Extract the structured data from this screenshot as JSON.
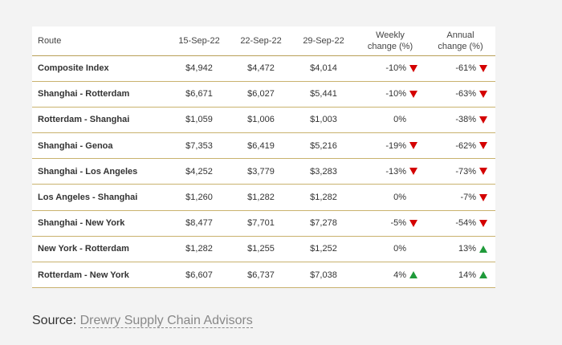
{
  "table": {
    "headers": {
      "route": "Route",
      "d1": "15-Sep-22",
      "d2": "22-Sep-22",
      "d3": "29-Sep-22",
      "weekly_line1": "Weekly",
      "weekly_line2": "change (%)",
      "annual_line1": "Annual",
      "annual_line2": "change (%)"
    },
    "rows": [
      {
        "route": "Composite Index",
        "d1": "$4,942",
        "d2": "$4,472",
        "d3": "$4,014",
        "weekly": "-10%",
        "weekly_dir": "down",
        "annual": "-61%",
        "annual_dir": "down"
      },
      {
        "route": "Shanghai - Rotterdam",
        "d1": "$6,671",
        "d2": "$6,027",
        "d3": "$5,441",
        "weekly": "-10%",
        "weekly_dir": "down",
        "annual": "-63%",
        "annual_dir": "down"
      },
      {
        "route": "Rotterdam - Shanghai",
        "d1": "$1,059",
        "d2": "$1,006",
        "d3": "$1,003",
        "weekly": "0%",
        "weekly_dir": "none",
        "annual": "-38%",
        "annual_dir": "down"
      },
      {
        "route": "Shanghai - Genoa",
        "d1": "$7,353",
        "d2": "$6,419",
        "d3": "$5,216",
        "weekly": "-19%",
        "weekly_dir": "down",
        "annual": "-62%",
        "annual_dir": "down"
      },
      {
        "route": "Shanghai - Los Angeles",
        "d1": "$4,252",
        "d2": "$3,779",
        "d3": "$3,283",
        "weekly": "-13%",
        "weekly_dir": "down",
        "annual": "-73%",
        "annual_dir": "down"
      },
      {
        "route": "Los Angeles - Shanghai",
        "d1": "$1,260",
        "d2": "$1,282",
        "d3": "$1,282",
        "weekly": "0%",
        "weekly_dir": "none",
        "annual": "-7%",
        "annual_dir": "down"
      },
      {
        "route": "Shanghai - New York",
        "d1": "$8,477",
        "d2": "$7,701",
        "d3": "$7,278",
        "weekly": "-5%",
        "weekly_dir": "down",
        "annual": "-54%",
        "annual_dir": "down"
      },
      {
        "route": "New York - Rotterdam",
        "d1": "$1,282",
        "d2": "$1,255",
        "d3": "$1,252",
        "weekly": "0%",
        "weekly_dir": "none",
        "annual": "13%",
        "annual_dir": "up"
      },
      {
        "route": "Rotterdam - New York",
        "d1": "$6,607",
        "d2": "$6,737",
        "d3": "$7,038",
        "weekly": "4%",
        "weekly_dir": "up",
        "annual": "14%",
        "annual_dir": "up"
      }
    ]
  },
  "source": {
    "label": "Source:",
    "link_text": "Drewry Supply Chain Advisors"
  },
  "colors": {
    "down_arrow": "#d40000",
    "up_arrow": "#1f9a3a",
    "rule": "#c9b26e"
  }
}
